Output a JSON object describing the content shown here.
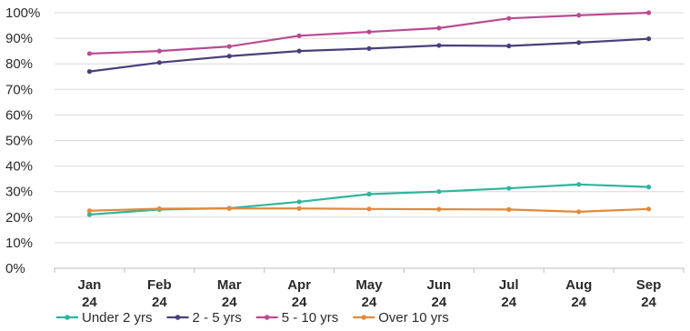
{
  "chart_data": {
    "type": "line",
    "x": [
      {
        "month": "Jan",
        "year": "24"
      },
      {
        "month": "Feb",
        "year": "24"
      },
      {
        "month": "Mar",
        "year": "24"
      },
      {
        "month": "Apr",
        "year": "24"
      },
      {
        "month": "May",
        "year": "24"
      },
      {
        "month": "Jun",
        "year": "24"
      },
      {
        "month": "Jul",
        "year": "24"
      },
      {
        "month": "Aug",
        "year": "24"
      },
      {
        "month": "Sep",
        "year": "24"
      }
    ],
    "y_ticks": [
      "0%",
      "10%",
      "20%",
      "30%",
      "40%",
      "50%",
      "60%",
      "70%",
      "80%",
      "90%",
      "100%"
    ],
    "ylim": [
      0,
      100
    ],
    "grid": "horizontal",
    "legend_position": "bottom",
    "series": [
      {
        "name": "Under 2 yrs",
        "color": "#2fb59c",
        "values": [
          21,
          23,
          23.5,
          26,
          29,
          30,
          31.3,
          32.8,
          31.8
        ]
      },
      {
        "name": "2 - 5 yrs",
        "color": "#4a3f7a",
        "values": [
          77,
          80.5,
          83,
          85,
          86,
          87.2,
          87,
          88.3,
          89.8
        ]
      },
      {
        "name": "5 - 10 yrs",
        "color": "#b94a93",
        "values": [
          84,
          85,
          86.8,
          91,
          92.5,
          94,
          97.8,
          99,
          100
        ]
      },
      {
        "name": "Over 10 yrs",
        "color": "#e08a3c",
        "values": [
          22.5,
          23.3,
          23.4,
          23.4,
          23.2,
          23.1,
          23,
          22.1,
          23.2
        ]
      }
    ]
  }
}
